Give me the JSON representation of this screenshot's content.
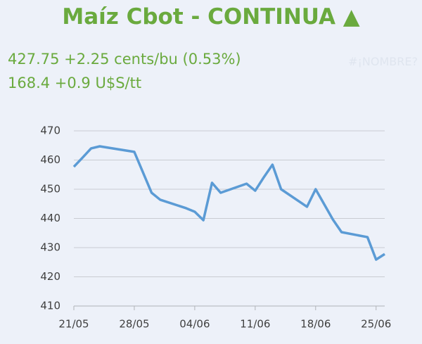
{
  "chart_data": {
    "type": "line",
    "title": "Maíz Cbot - CONTINUA ▲",
    "quote_lines": [
      "427.75 +2.25 cents/bu (0.53%)",
      "168.4 +0.9 U$S/tt"
    ],
    "cell_error": "#¡NOMBRE?",
    "x": [
      "21/05",
      "22/05",
      "23/05",
      "24/05",
      "28/05",
      "29/05",
      "30/05",
      "31/05",
      "03/06",
      "04/06",
      "05/06",
      "06/06",
      "07/06",
      "10/06",
      "11/06",
      "12/06",
      "13/06",
      "14/06",
      "17/06",
      "18/06",
      "20/06",
      "21/06",
      "24/06",
      "25/06",
      "26/06"
    ],
    "series": [
      {
        "color": "#5b9bd5",
        "values": [
          457.7,
          460.8,
          464,
          464.7,
          462.8,
          455.8,
          448.8,
          446.4,
          443.5,
          442.3,
          439.4,
          452.2,
          448.8,
          451.9,
          449.5,
          454.1,
          458.4,
          450,
          444,
          450,
          439.6,
          435.3,
          433.6,
          425.9,
          427.8
        ]
      }
    ],
    "xlim": [
      "21/05",
      "26/06"
    ],
    "xticks": [
      "21/05",
      "28/05",
      "04/06",
      "11/06",
      "18/06",
      "25/06"
    ],
    "ylim": [
      410,
      470
    ],
    "yticks": [
      410,
      420,
      430,
      440,
      450,
      460,
      470
    ],
    "grid": true
  }
}
